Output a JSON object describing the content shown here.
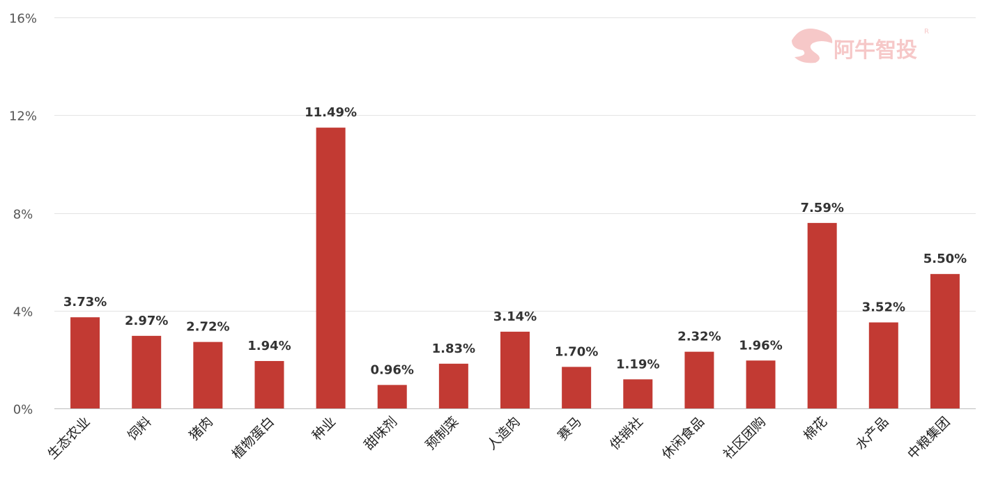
{
  "watermark": {
    "text": "阿牛智投",
    "mark": "R",
    "icon": "bull-logo-icon"
  },
  "chart_data": {
    "type": "bar",
    "categories": [
      "生态农业",
      "饲料",
      "猪肉",
      "植物蛋白",
      "种业",
      "甜味剂",
      "预制菜",
      "人造肉",
      "赛马",
      "供销社",
      "休闲食品",
      "社区团购",
      "棉花",
      "水产品",
      "中粮集团"
    ],
    "values": [
      3.73,
      2.97,
      2.72,
      1.94,
      11.49,
      0.96,
      1.83,
      3.14,
      1.7,
      1.19,
      2.32,
      1.96,
      7.59,
      3.52,
      5.5
    ],
    "data_labels": [
      "3.73%",
      "2.97%",
      "2.72%",
      "1.94%",
      "11.49%",
      "0.96%",
      "1.83%",
      "3.14%",
      "1.70%",
      "1.19%",
      "2.32%",
      "1.96%",
      "7.59%",
      "3.52%",
      "5.50%"
    ],
    "yticks": [
      0,
      4,
      8,
      12,
      16
    ],
    "ytick_labels": [
      "0%",
      "4%",
      "8%",
      "12%",
      "16%"
    ],
    "ylim": [
      0,
      16
    ],
    "grid": true,
    "bar_color": "#c23a33",
    "title": "",
    "xlabel": "",
    "ylabel": ""
  }
}
